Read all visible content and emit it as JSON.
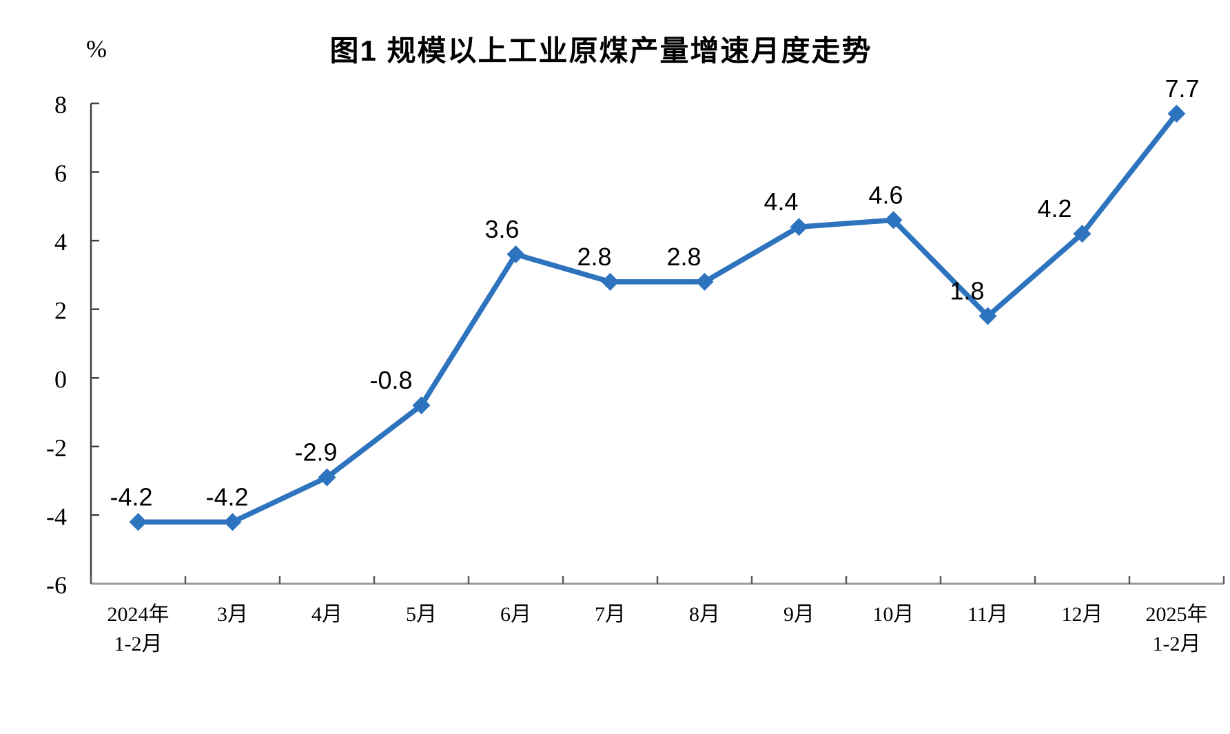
{
  "chart_data": {
    "type": "line",
    "title": "图1 规模以上工业原煤产量增速月度走势",
    "unit_label": "%",
    "categories": [
      "2024年\n1-2月",
      "3月",
      "4月",
      "5月",
      "6月",
      "7月",
      "8月",
      "9月",
      "10月",
      "11月",
      "12月",
      "2025年\n1-2月"
    ],
    "values": [
      -4.2,
      -4.2,
      -2.9,
      -0.8,
      3.6,
      2.8,
      2.8,
      4.4,
      4.6,
      1.8,
      4.2,
      7.7
    ],
    "data_labels": [
      "-4.2",
      "-4.2",
      "-2.9",
      "-0.8",
      "3.6",
      "2.8",
      "2.8",
      "4.4",
      "4.6",
      "1.8",
      "4.2",
      "7.7"
    ],
    "ylim": [
      -6,
      8
    ],
    "yticks": [
      8,
      6,
      4,
      2,
      0,
      -2,
      -4,
      -6
    ],
    "ytick_labels": [
      "8",
      "6",
      "4",
      "2",
      "0",
      "-2",
      "-4",
      "-6"
    ],
    "grid": false,
    "legend": "none",
    "marker": "diamond",
    "label_dx": [
      -10,
      -8,
      -16,
      -44,
      -20,
      -23,
      -30,
      -26,
      -11,
      -30,
      -40,
      8
    ],
    "colors": {
      "line": "#2D73BE",
      "marker": "#2D73BE",
      "y_axis": "#404040",
      "x_axis": "#9A9A9A",
      "x_tick": "#595959",
      "text": "#000000",
      "background": "#FFFFFF"
    }
  }
}
